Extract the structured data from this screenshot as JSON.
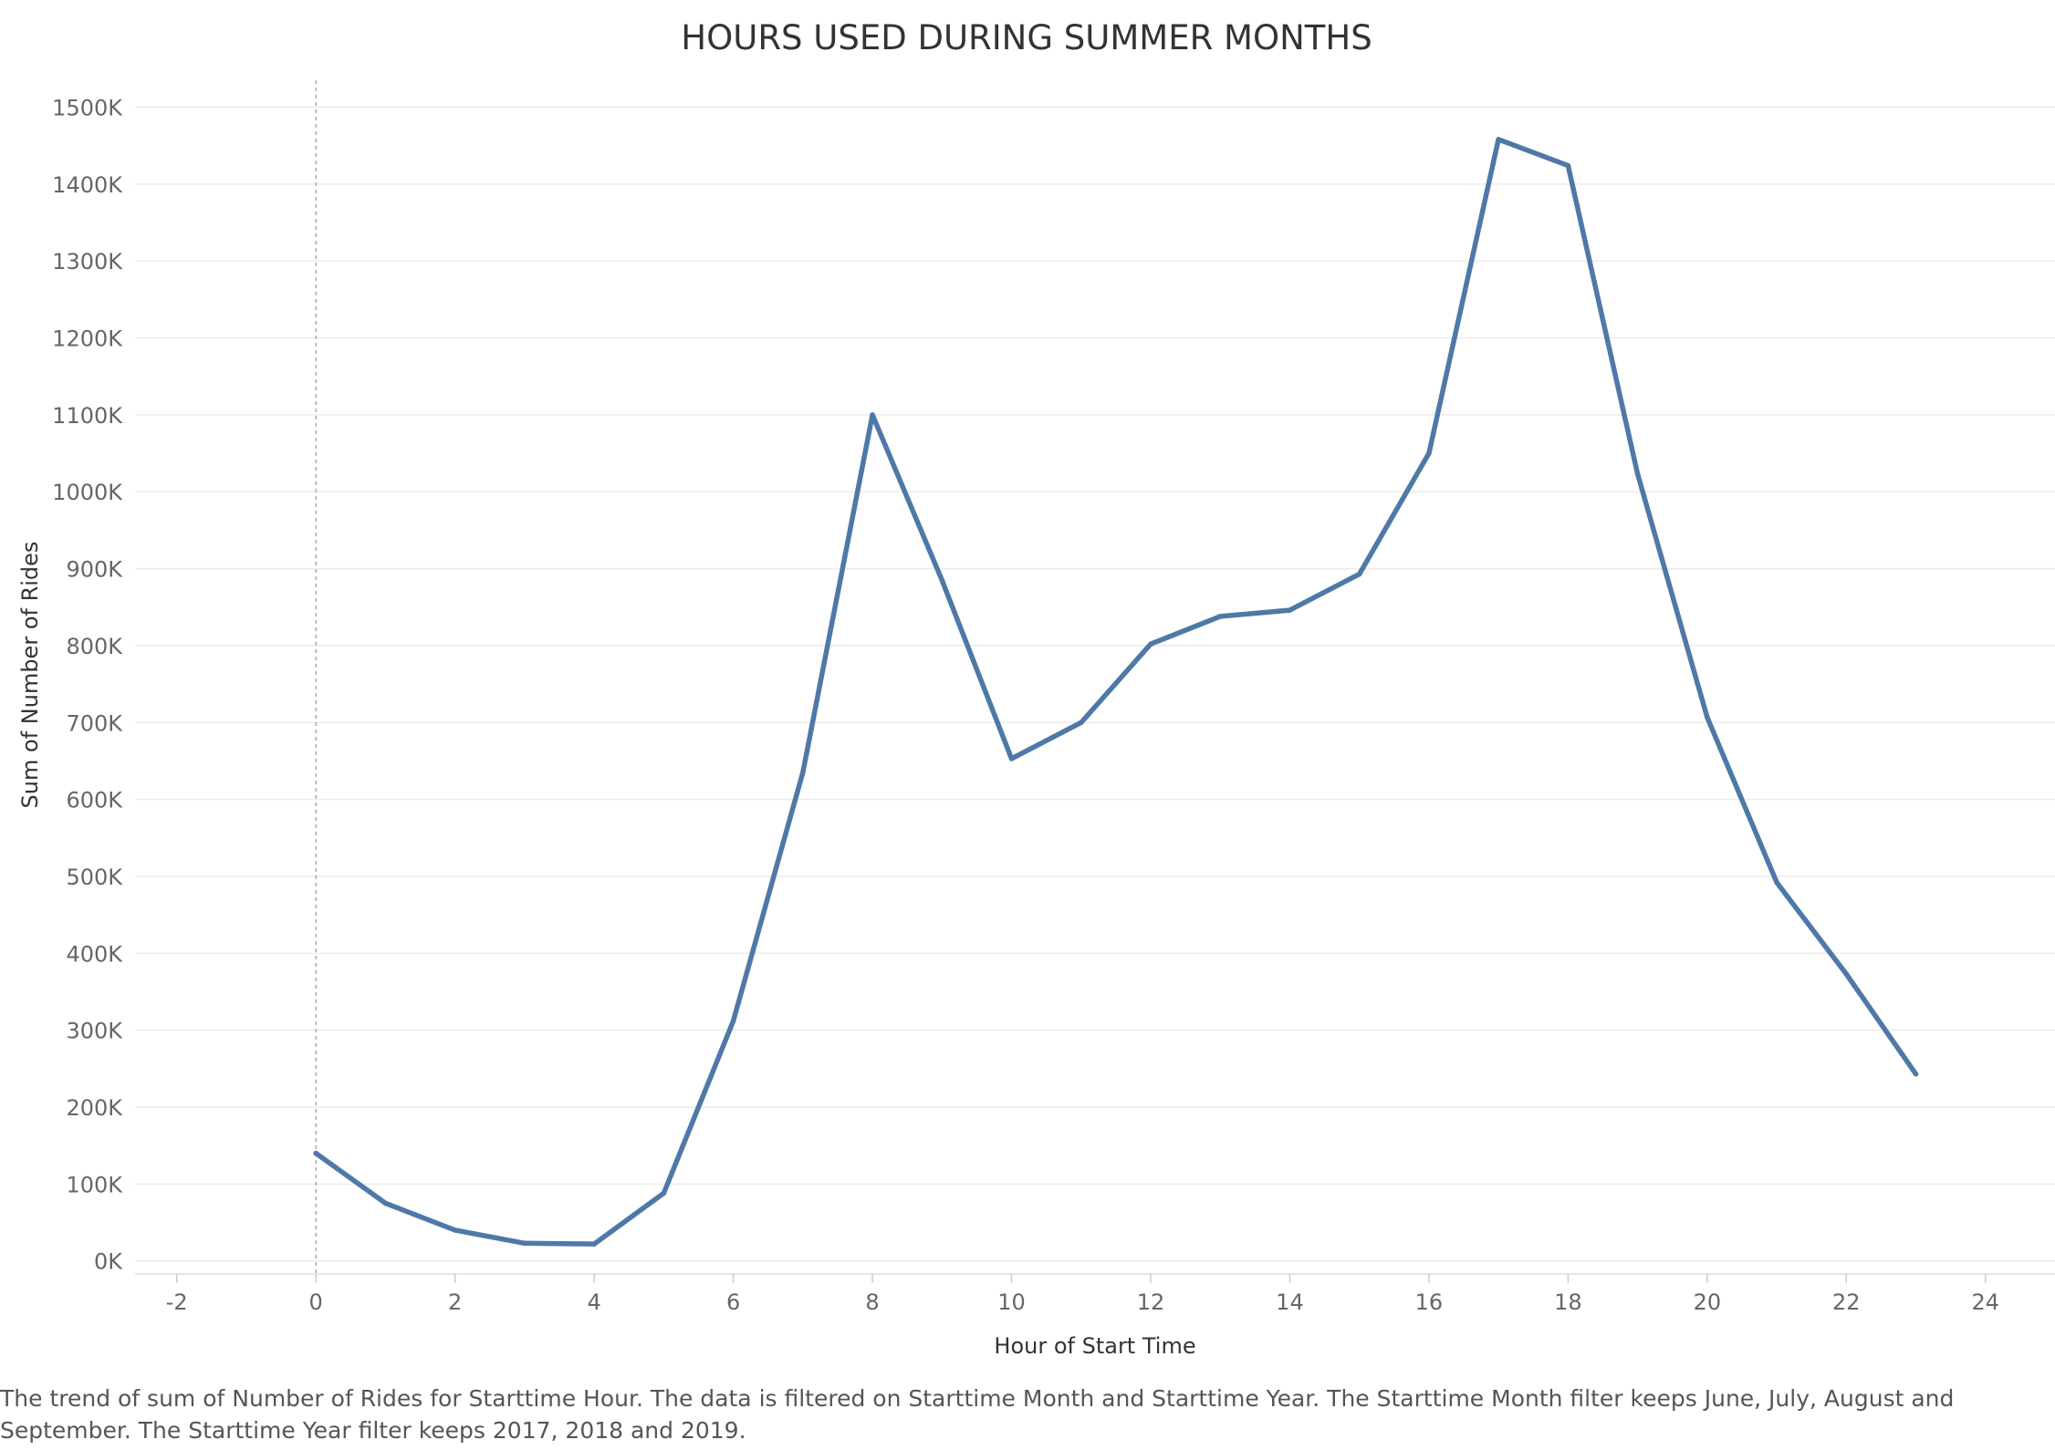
{
  "chart_data": {
    "type": "line",
    "title": "HOURS USED DURING SUMMER MONTHS",
    "xlabel": "Hour of Start Time",
    "ylabel": "Sum of Number of Rides",
    "xlim": [
      -2.6,
      25
    ],
    "ylim": [
      -17,
      1535
    ],
    "x_ticks": [
      -2,
      0,
      2,
      4,
      6,
      8,
      10,
      12,
      14,
      16,
      18,
      20,
      22,
      24
    ],
    "y_ticks": [
      0,
      100,
      200,
      300,
      400,
      500,
      600,
      700,
      800,
      900,
      1000,
      1100,
      1200,
      1300,
      1400,
      1500
    ],
    "y_tick_suffix": "K",
    "grid": true,
    "reference_line_x": 0,
    "line_color": "#4e79a7",
    "series": [
      {
        "x": [
          0,
          1,
          2,
          3,
          4,
          5,
          6,
          7,
          8,
          9,
          10,
          11,
          12,
          13,
          14,
          15,
          16,
          17,
          18,
          19,
          20,
          21,
          22,
          23
        ],
        "values": [
          140,
          75,
          40,
          23,
          22,
          88,
          312,
          635,
          1100,
          885,
          653,
          700,
          802,
          838,
          846,
          893,
          1050,
          1458,
          1424,
          1023,
          707,
          492,
          373,
          243
        ]
      }
    ]
  },
  "caption": "The trend of sum of Number of Rides for Starttime Hour. The data is filtered on Starttime Month and Starttime Year. The Starttime Month filter keeps June, July, August and September. The Starttime Year filter keeps 2017, 2018 and 2019."
}
